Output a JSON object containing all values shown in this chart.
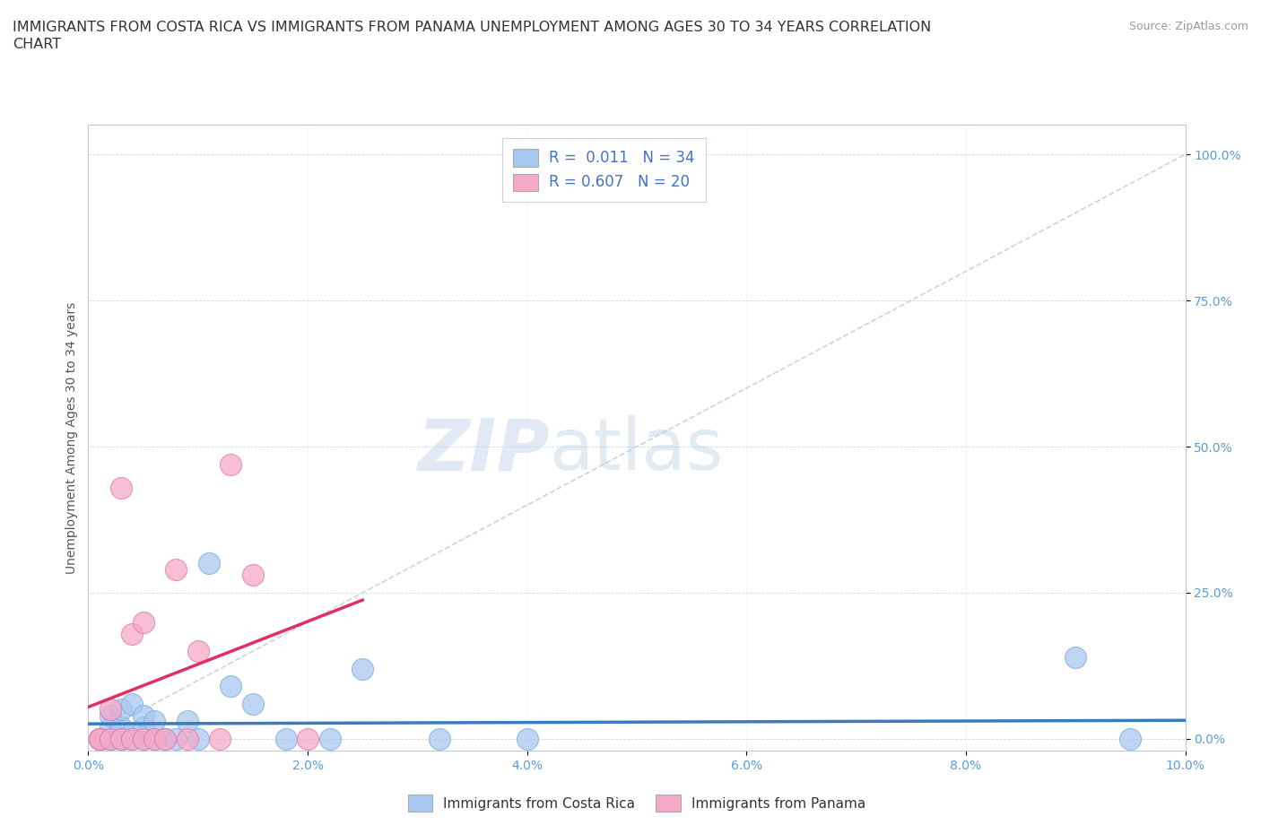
{
  "title_line1": "IMMIGRANTS FROM COSTA RICA VS IMMIGRANTS FROM PANAMA UNEMPLOYMENT AMONG AGES 30 TO 34 YEARS CORRELATION",
  "title_line2": "CHART",
  "source_text": "Source: ZipAtlas.com",
  "ylabel": "Unemployment Among Ages 30 to 34 years",
  "xlim": [
    0.0,
    0.1
  ],
  "ylim": [
    -0.02,
    1.05
  ],
  "xticks": [
    0.0,
    0.02,
    0.04,
    0.06,
    0.08,
    0.1
  ],
  "yticks": [
    0.0,
    0.25,
    0.5,
    0.75,
    1.0
  ],
  "xticklabels": [
    "0.0%",
    "2.0%",
    "4.0%",
    "6.0%",
    "8.0%",
    "10.0%"
  ],
  "yticklabels": [
    "0.0%",
    "25.0%",
    "50.0%",
    "75.0%",
    "100.0%"
  ],
  "costa_rica_color": "#a8c8f0",
  "costa_rica_edge_color": "#7aaedd",
  "panama_color": "#f5a8c8",
  "panama_edge_color": "#e07aaa",
  "costa_rica_line_color": "#3a7abf",
  "panama_line_color": "#e03060",
  "diagonal_color": "#c8d0dc",
  "R_costa_rica": 0.011,
  "N_costa_rica": 34,
  "R_panama": 0.607,
  "N_panama": 20,
  "legend_label_cr": "Immigrants from Costa Rica",
  "legend_label_pa": "Immigrants from Panama",
  "watermark_zip": "ZIP",
  "watermark_atlas": "atlas",
  "costa_rica_x": [
    0.001,
    0.001,
    0.001,
    0.001,
    0.002,
    0.002,
    0.002,
    0.002,
    0.003,
    0.003,
    0.003,
    0.003,
    0.004,
    0.004,
    0.004,
    0.005,
    0.005,
    0.005,
    0.006,
    0.006,
    0.007,
    0.008,
    0.009,
    0.01,
    0.011,
    0.013,
    0.015,
    0.018,
    0.022,
    0.025,
    0.032,
    0.04,
    0.09,
    0.095
  ],
  "costa_rica_y": [
    0.0,
    0.0,
    0.0,
    0.0,
    0.0,
    0.0,
    0.02,
    0.04,
    0.0,
    0.0,
    0.02,
    0.05,
    0.0,
    0.01,
    0.06,
    0.0,
    0.02,
    0.04,
    0.0,
    0.03,
    0.0,
    0.0,
    0.03,
    0.0,
    0.3,
    0.09,
    0.06,
    0.0,
    0.0,
    0.12,
    0.0,
    0.0,
    0.14,
    0.0
  ],
  "panama_x": [
    0.001,
    0.001,
    0.001,
    0.002,
    0.002,
    0.003,
    0.003,
    0.004,
    0.004,
    0.005,
    0.005,
    0.006,
    0.007,
    0.008,
    0.009,
    0.01,
    0.012,
    0.013,
    0.015,
    0.02
  ],
  "panama_y": [
    0.0,
    0.0,
    0.0,
    0.0,
    0.05,
    0.0,
    0.43,
    0.0,
    0.18,
    0.0,
    0.2,
    0.0,
    0.0,
    0.29,
    0.0,
    0.15,
    0.0,
    0.47,
    0.28,
    0.0
  ],
  "title_fontsize": 11.5,
  "axis_label_fontsize": 10,
  "tick_fontsize": 10,
  "legend_fontsize": 11,
  "source_fontsize": 9,
  "background_color": "#ffffff"
}
